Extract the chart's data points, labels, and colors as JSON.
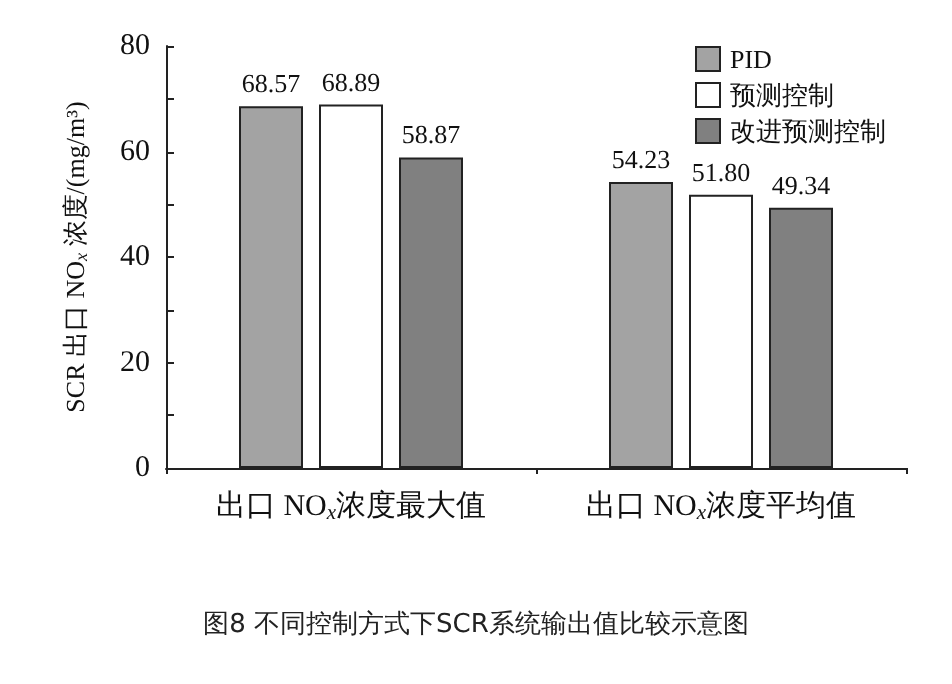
{
  "chart_data": {
    "type": "bar",
    "ylabel": "SCR 出口 NO$_{x}$ 浓度/(mg/m³)",
    "categories": [
      "出口 NO$_{x}$浓度最大值",
      "出口 NO$_{x}$浓度平均值"
    ],
    "series": [
      {
        "name": "PID",
        "color": "#a3a3a3",
        "values": [
          68.57,
          54.23
        ],
        "value_labels": [
          "68.57",
          "54.23"
        ]
      },
      {
        "name": "预测控制",
        "color": "#ffffff",
        "values": [
          68.89,
          51.8
        ],
        "value_labels": [
          "68.89",
          "51.80"
        ]
      },
      {
        "name": "改进预测控制",
        "color": "#808080",
        "values": [
          58.87,
          49.34
        ],
        "value_labels": [
          "58.87",
          "49.34"
        ]
      }
    ],
    "ylim": [
      0,
      80
    ],
    "yticks": [
      0,
      {
        "value": 10,
        "label": null
      },
      20,
      {
        "value": 30,
        "label": null
      },
      40,
      {
        "value": 50,
        "label": null
      },
      60,
      {
        "value": 70,
        "label": null
      },
      80
    ],
    "legend": "top right",
    "grid": false,
    "annotations": [
      "图8 不同控制方式下SCR系统输出值比较示意图"
    ]
  }
}
